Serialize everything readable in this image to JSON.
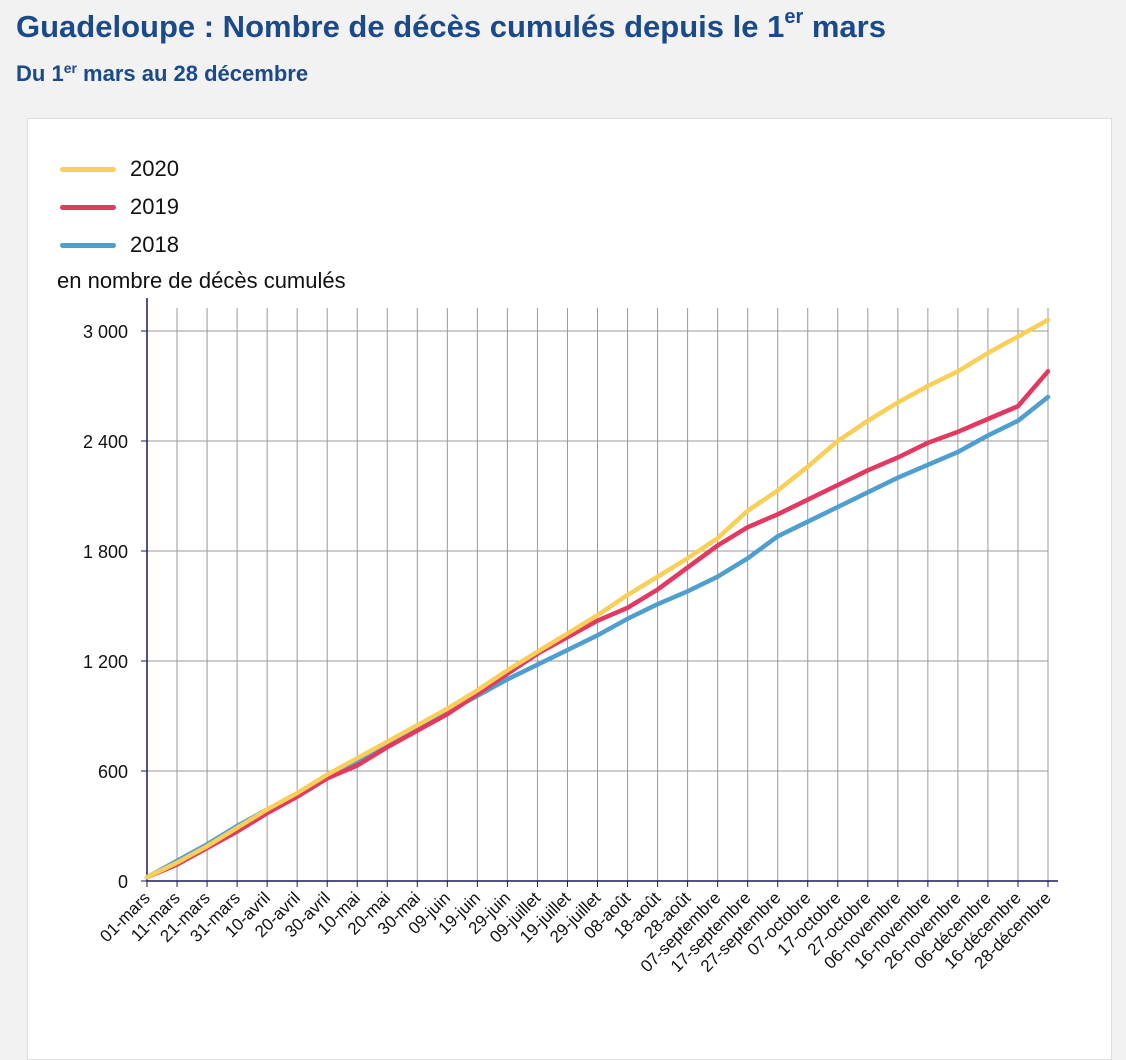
{
  "header": {
    "title_main": "Guadeloupe : Nombre de décès cumulés depuis le 1",
    "title_sup": "er",
    "title_end": " mars",
    "subtitle_start": "Du 1",
    "subtitle_sup": "er",
    "subtitle_end": " mars au 28 décembre"
  },
  "chart_data": {
    "type": "line",
    "ylabel": "en nombre de décès cumulés",
    "ylim": [
      0,
      3000
    ],
    "yticks": [
      0,
      600,
      1200,
      1800,
      2400,
      3000
    ],
    "ytick_labels": [
      "0",
      "600",
      "1 200",
      "1 800",
      "2 400",
      "3 000"
    ],
    "grid": true,
    "legend_position": "top-left",
    "categories": [
      "01-mars",
      "11-mars",
      "21-mars",
      "31-mars",
      "10-avril",
      "20-avril",
      "30-avril",
      "10-mai",
      "20-mai",
      "30-mai",
      "09-juin",
      "19-juin",
      "29-juin",
      "09-juillet",
      "19-juillet",
      "29-juillet",
      "08-août",
      "18-août",
      "28-août",
      "07-septembre",
      "17-septembre",
      "27-septembre",
      "07-octobre",
      "17-octobre",
      "27-octobre",
      "06-novembre",
      "16-novembre",
      "26-novembre",
      "06-décembre",
      "16-décembre",
      "28-décembre"
    ],
    "series": [
      {
        "name": "2020",
        "color": "#f9cf57",
        "values": [
          20,
          100,
          190,
          290,
          390,
          480,
          580,
          670,
          760,
          850,
          940,
          1040,
          1150,
          1250,
          1350,
          1450,
          1560,
          1660,
          1760,
          1870,
          2020,
          2130,
          2260,
          2400,
          2510,
          2610,
          2700,
          2780,
          2880,
          2970,
          3060
        ]
      },
      {
        "name": "2019",
        "color": "#e3385f",
        "values": [
          20,
          90,
          180,
          270,
          370,
          460,
          560,
          630,
          730,
          820,
          910,
          1020,
          1130,
          1240,
          1330,
          1420,
          1490,
          1590,
          1710,
          1830,
          1930,
          2000,
          2080,
          2160,
          2240,
          2310,
          2390,
          2450,
          2520,
          2590,
          2780
        ]
      },
      {
        "name": "2018",
        "color": "#4e9fcf",
        "values": [
          20,
          110,
          200,
          300,
          390,
          470,
          560,
          650,
          740,
          830,
          920,
          1010,
          1100,
          1180,
          1260,
          1340,
          1430,
          1510,
          1580,
          1660,
          1760,
          1880,
          1960,
          2040,
          2120,
          2200,
          2270,
          2340,
          2430,
          2510,
          2640
        ]
      }
    ]
  }
}
